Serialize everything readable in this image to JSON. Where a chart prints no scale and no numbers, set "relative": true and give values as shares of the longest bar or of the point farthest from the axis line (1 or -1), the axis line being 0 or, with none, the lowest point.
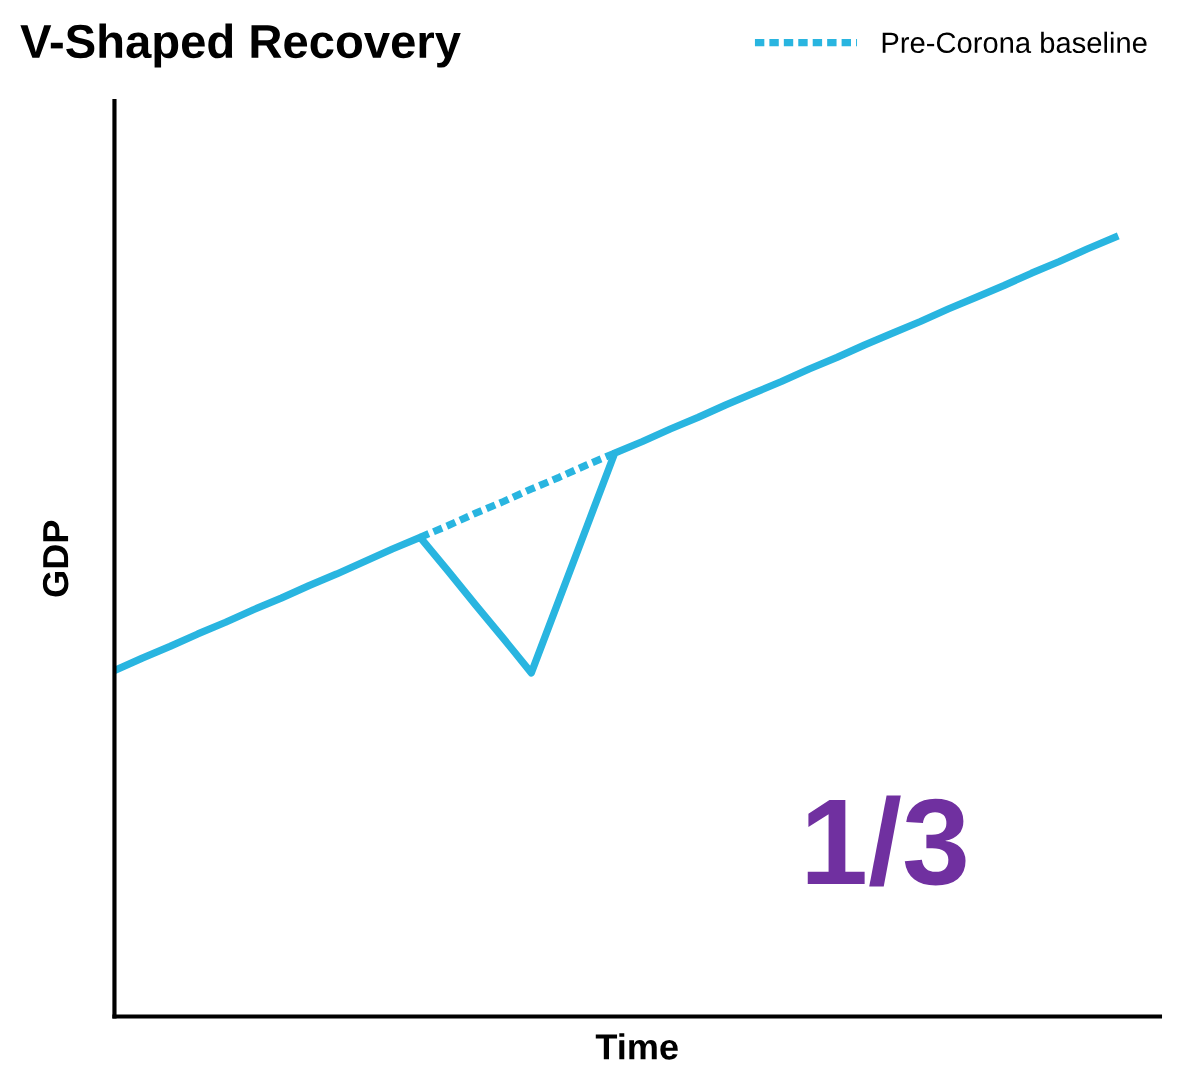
{
  "chart_data": {
    "type": "line",
    "title": "V-Shaped Recovery",
    "xlabel": "Time",
    "ylabel": "GDP",
    "relative": true,
    "tick_labels": false,
    "legend": "top right",
    "categories": [
      null,
      null,
      null,
      null,
      null,
      null,
      null,
      null,
      null,
      null,
      null,
      null,
      null,
      null,
      null,
      null,
      null,
      null,
      null,
      null,
      null,
      null,
      null,
      null,
      null,
      null,
      null,
      null,
      null,
      null,
      null,
      null,
      null,
      null,
      null,
      null,
      null
    ],
    "series": [
      {
        "color": "#29b5e0",
        "line_style": "solid",
        "values": [
          0.444,
          0.46,
          0.475,
          0.491,
          0.506,
          0.522,
          0.537,
          0.553,
          0.568,
          0.584,
          0.6,
          0.615,
          0.572,
          0.528,
          0.485,
          0.441,
          0.535,
          0.629,
          0.723,
          0.738,
          0.754,
          0.769,
          0.785,
          0.8,
          0.815,
          0.831,
          0.846,
          0.862,
          0.877,
          0.892,
          0.908,
          0.923,
          0.938,
          0.954,
          0.969,
          0.985,
          1.0
        ]
      },
      {
        "name": "Pre-Corona baseline",
        "color": "#29b5e0",
        "line_style": "dotted",
        "values": [
          null,
          null,
          null,
          null,
          null,
          null,
          null,
          null,
          null,
          null,
          null,
          0.615,
          0.63,
          0.646,
          0.661,
          0.677,
          0.692,
          0.708,
          0.723,
          null,
          null,
          null,
          null,
          null,
          null,
          null,
          null,
          null,
          null,
          null,
          null,
          null,
          null,
          null,
          null,
          null,
          null
        ]
      }
    ],
    "annotations": [
      "1/3"
    ]
  }
}
